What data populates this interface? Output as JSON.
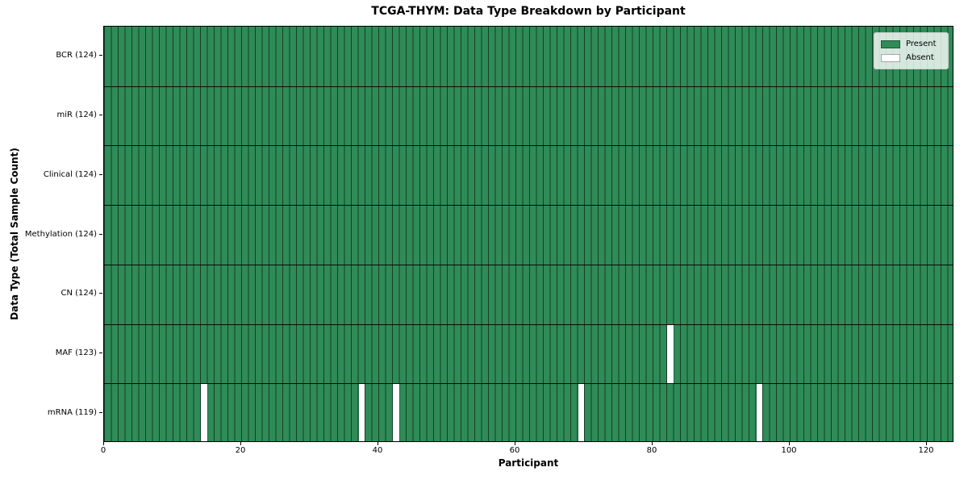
{
  "colors": {
    "present": "#2f8b57",
    "absent": "#ffffff",
    "bar_edge": "rgba(0,0,0,0.55)",
    "row_separator": "#0a0a0a",
    "axis": "#000000",
    "legend_bg": "rgba(255,255,255,0.8)",
    "legend_border": "#cccccc",
    "text": "#000000"
  },
  "chart_data": {
    "type": "heatmap",
    "title": "TCGA-THYM: Data Type Breakdown by Participant",
    "xlabel": "Participant",
    "ylabel": "Data Type (Total Sample Count)",
    "n_participants": 124,
    "xlim": [
      0,
      124
    ],
    "x_ticks": [
      0,
      20,
      40,
      60,
      80,
      100,
      120
    ],
    "grid": false,
    "legend_position": "upper right",
    "legend": [
      {
        "label": "Present",
        "color": "#2f8b57"
      },
      {
        "label": "Absent",
        "color": "#ffffff"
      }
    ],
    "rows": [
      {
        "label": "BCR (124)",
        "data_type": "BCR",
        "present_count": 124,
        "absent_participants": []
      },
      {
        "label": "miR (124)",
        "data_type": "miR",
        "present_count": 124,
        "absent_participants": []
      },
      {
        "label": "Clinical (124)",
        "data_type": "Clinical",
        "present_count": 124,
        "absent_participants": []
      },
      {
        "label": "Methylation (124)",
        "data_type": "Methylation",
        "present_count": 124,
        "absent_participants": []
      },
      {
        "label": "CN (124)",
        "data_type": "CN",
        "present_count": 124,
        "absent_participants": []
      },
      {
        "label": "MAF (123)",
        "data_type": "MAF",
        "present_count": 123,
        "absent_participants": [
          82
        ]
      },
      {
        "label": "mRNA (119)",
        "data_type": "mRNA",
        "present_count": 119,
        "absent_participants": [
          14,
          37,
          42,
          69,
          95
        ]
      }
    ]
  }
}
